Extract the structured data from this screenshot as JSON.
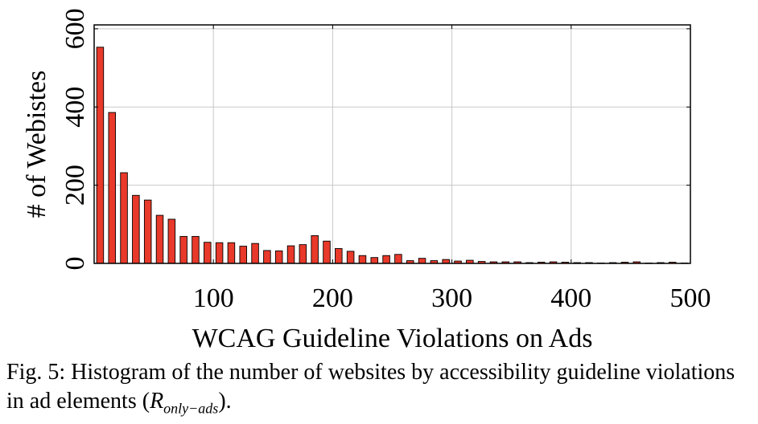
{
  "chart_data": {
    "type": "bar",
    "xlabel": "WCAG Guideline Violations on Ads",
    "ylabel": "# of Webistes",
    "xlim": [
      0,
      500
    ],
    "ylim": [
      0,
      610
    ],
    "xticks": [
      100,
      200,
      300,
      400,
      500
    ],
    "yticks": [
      0,
      200,
      400,
      600
    ],
    "grid": true,
    "bar_color": "#e8392a",
    "bin_width": 10,
    "x": [
      5,
      15,
      25,
      35,
      45,
      55,
      65,
      75,
      85,
      95,
      105,
      115,
      125,
      135,
      145,
      155,
      165,
      175,
      185,
      195,
      205,
      215,
      225,
      235,
      245,
      255,
      265,
      275,
      285,
      295,
      305,
      315,
      325,
      335,
      345,
      355,
      365,
      375,
      385,
      395,
      405,
      415,
      425,
      435,
      445,
      455,
      465,
      475,
      485,
      495
    ],
    "values": [
      553,
      386,
      232,
      174,
      162,
      123,
      113,
      69,
      69,
      54,
      53,
      53,
      44,
      51,
      33,
      32,
      45,
      48,
      71,
      57,
      38,
      31,
      20,
      15,
      20,
      23,
      7,
      13,
      7,
      10,
      6,
      8,
      5,
      4,
      4,
      4,
      2,
      3,
      4,
      3,
      2,
      2,
      1,
      2,
      3,
      4,
      1,
      2,
      3,
      1
    ]
  },
  "caption": {
    "prefix": "Fig. 5: Histogram of the number of websites by accessibility guideline violations in ad elements (",
    "math_main": "R",
    "math_sub": "only−ads",
    "suffix": ")."
  }
}
